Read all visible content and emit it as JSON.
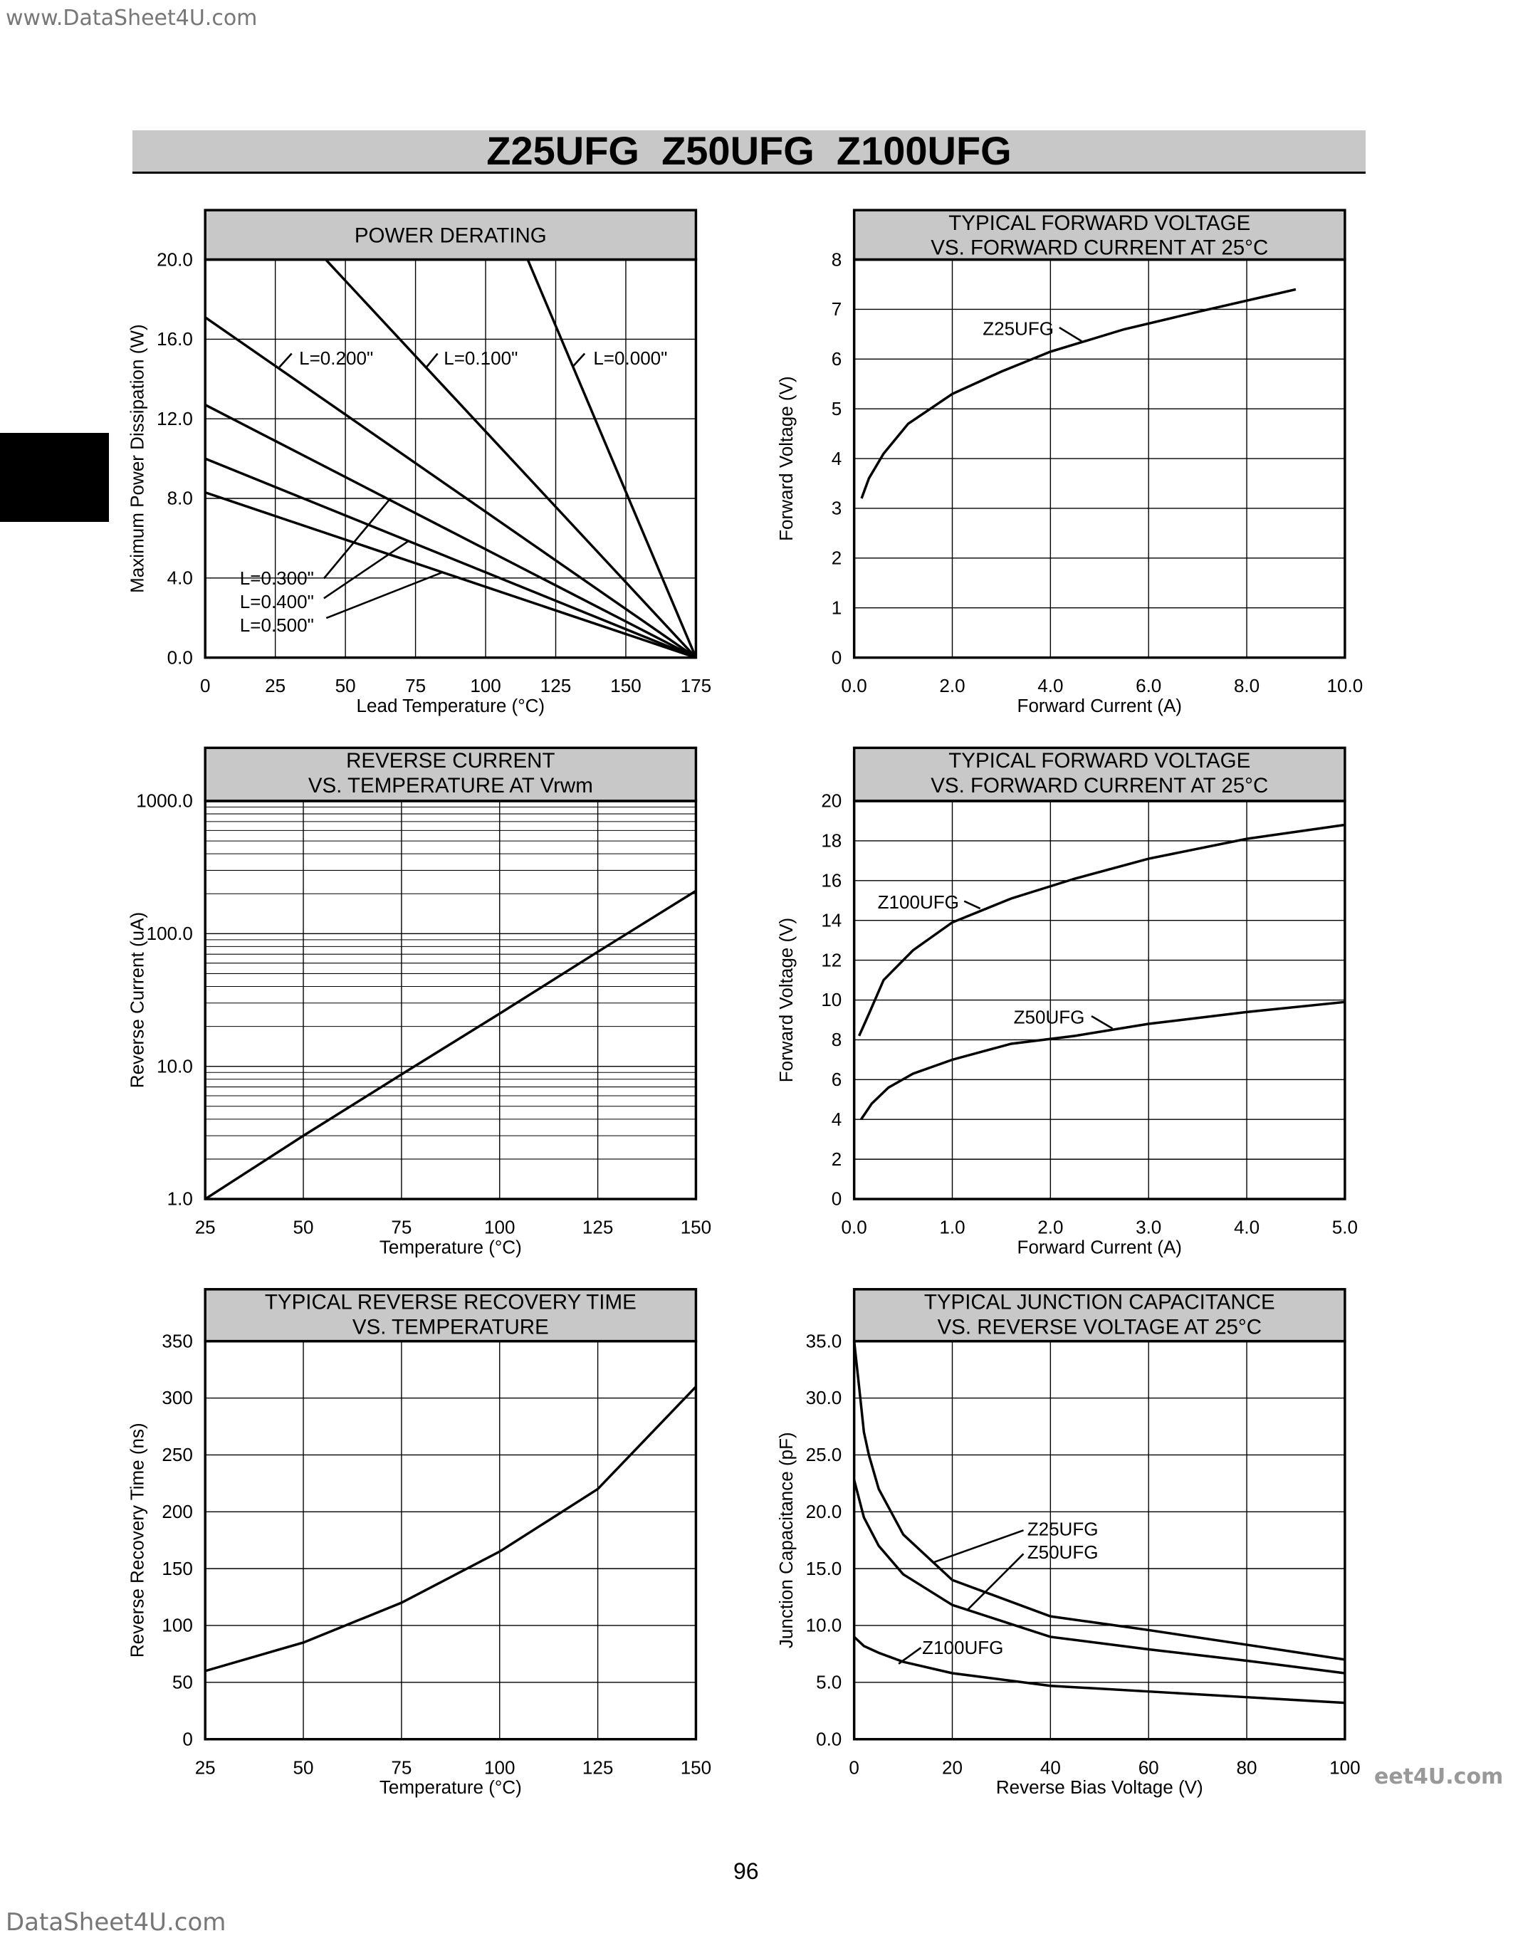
{
  "watermarks": {
    "top_left": "www.DataSheet4U.com",
    "bottom_left": "DataSheet4U.com",
    "right": "eet4U.com"
  },
  "page_title": "Z25UFG  Z50UFG  Z100UFG",
  "page_number": "96",
  "colors": {
    "header_fill": "#c8c8c8",
    "line": "#000000",
    "side_tab": "#000000"
  },
  "chart_data": [
    {
      "type": "line",
      "title": [
        "POWER DERATING"
      ],
      "xlabel": "Lead Temperature (°C)",
      "ylabel": "Maximum  Power Dissipation (W)",
      "xlim": [
        0,
        175
      ],
      "ylim": [
        0,
        20
      ],
      "xticks": [
        0,
        25,
        50,
        75,
        100,
        125,
        150,
        175
      ],
      "xtick_labels": [
        "0",
        "25",
        "50",
        "75",
        "100",
        "125",
        "150",
        "175"
      ],
      "yticks": [
        0,
        4,
        8,
        12,
        16,
        20
      ],
      "ytick_labels": [
        "0.0",
        "4.0",
        "8.0",
        "12.0",
        "16.0",
        "20.0"
      ],
      "grid": true,
      "series": [
        {
          "name": "L=0.000\"",
          "points": [
            [
              115,
              20
            ],
            [
              175,
              0
            ]
          ]
        },
        {
          "name": "L=0.100\"",
          "points": [
            [
              43,
              20
            ],
            [
              175,
              0
            ]
          ]
        },
        {
          "name": "L=0.200\"",
          "points": [
            [
              0,
              17.1
            ],
            [
              175,
              0
            ]
          ]
        },
        {
          "name": "L=0.300\"",
          "points": [
            [
              0,
              12.7
            ],
            [
              175,
              0
            ]
          ]
        },
        {
          "name": "L=0.400\"",
          "points": [
            [
              0,
              10.0
            ],
            [
              175,
              0
            ]
          ]
        },
        {
          "name": "L=0.500\"",
          "points": [
            [
              0,
              8.3
            ],
            [
              175,
              0
            ]
          ]
        }
      ]
    },
    {
      "type": "line",
      "title": [
        "TYPICAL FORWARD VOLTAGE",
        "VS. FORWARD CURRENT AT 25°C"
      ],
      "xlabel": "Forward Current (A)",
      "ylabel": "Forward Voltage (V)",
      "xlim": [
        0,
        10
      ],
      "ylim": [
        0,
        8
      ],
      "xticks": [
        0,
        2,
        4,
        6,
        8,
        10
      ],
      "xtick_labels": [
        "0.0",
        "2.0",
        "4.0",
        "6.0",
        "8.0",
        "10.0"
      ],
      "yticks": [
        0,
        1,
        2,
        3,
        4,
        5,
        6,
        7,
        8
      ],
      "ytick_labels": [
        "0",
        "1",
        "2",
        "3",
        "4",
        "5",
        "6",
        "7",
        "8"
      ],
      "grid": true,
      "series": [
        {
          "name": "Z25UFG",
          "points": [
            [
              0.15,
              3.2
            ],
            [
              0.3,
              3.6
            ],
            [
              0.6,
              4.1
            ],
            [
              1.1,
              4.7
            ],
            [
              2,
              5.3
            ],
            [
              3,
              5.75
            ],
            [
              4,
              6.15
            ],
            [
              5.5,
              6.6
            ],
            [
              7,
              6.95
            ],
            [
              9,
              7.4
            ]
          ]
        }
      ]
    },
    {
      "type": "line",
      "title": [
        "REVERSE CURRENT",
        "VS. TEMPERATURE AT Vrwm"
      ],
      "xlabel": "Temperature (°C)",
      "ylabel": "Reverse Current (uA)",
      "xlim": [
        25,
        150
      ],
      "ylim": [
        1,
        1000
      ],
      "yscale": "log",
      "xticks": [
        25,
        50,
        75,
        100,
        125,
        150
      ],
      "xtick_labels": [
        "25",
        "50",
        "75",
        "100",
        "125",
        "150"
      ],
      "yticks": [
        1,
        10,
        100,
        1000
      ],
      "ytick_labels": [
        "1.0",
        "10.0",
        "100.0",
        "1000.0"
      ],
      "grid": true,
      "series": [
        {
          "points": [
            [
              25,
              1
            ],
            [
              50,
              3
            ],
            [
              75,
              8.7
            ],
            [
              100,
              25
            ],
            [
              125,
              73
            ],
            [
              150,
              210
            ]
          ]
        }
      ]
    },
    {
      "type": "line",
      "title": [
        "TYPICAL FORWARD VOLTAGE",
        "VS. FORWARD CURRENT AT 25°C"
      ],
      "xlabel": "Forward Current (A)",
      "ylabel": "Forward Voltage (V)",
      "xlim": [
        0,
        5
      ],
      "ylim": [
        0,
        20
      ],
      "xticks": [
        0,
        1,
        2,
        3,
        4,
        5
      ],
      "xtick_labels": [
        "0.0",
        "1.0",
        "2.0",
        "3.0",
        "4.0",
        "5.0"
      ],
      "yticks": [
        0,
        2,
        4,
        6,
        8,
        10,
        12,
        14,
        16,
        18,
        20
      ],
      "ytick_labels": [
        "0",
        "2",
        "4",
        "6",
        "8",
        "10",
        "12",
        "14",
        "16",
        "18",
        "20"
      ],
      "grid": true,
      "series": [
        {
          "name": "Z100UFG",
          "points": [
            [
              0.05,
              8.2
            ],
            [
              0.15,
              9.3
            ],
            [
              0.3,
              11
            ],
            [
              0.6,
              12.5
            ],
            [
              1.0,
              13.9
            ],
            [
              1.6,
              15.1
            ],
            [
              2.25,
              16.1
            ],
            [
              3.0,
              17.1
            ],
            [
              4.0,
              18.1
            ],
            [
              5.0,
              18.8
            ]
          ]
        },
        {
          "name": "Z50UFG",
          "points": [
            [
              0.07,
              4.0
            ],
            [
              0.18,
              4.8
            ],
            [
              0.35,
              5.6
            ],
            [
              0.6,
              6.3
            ],
            [
              1.0,
              7.0
            ],
            [
              1.6,
              7.8
            ],
            [
              2.25,
              8.2
            ],
            [
              3.0,
              8.8
            ],
            [
              4.0,
              9.4
            ],
            [
              5.0,
              9.9
            ]
          ]
        }
      ]
    },
    {
      "type": "line",
      "title": [
        "TYPICAL REVERSE RECOVERY TIME",
        "VS. TEMPERATURE"
      ],
      "xlabel": "Temperature (°C)",
      "ylabel": "Reverse Recovery Time (ns)",
      "xlim": [
        25,
        150
      ],
      "ylim": [
        0,
        350
      ],
      "xticks": [
        25,
        50,
        75,
        100,
        125,
        150
      ],
      "xtick_labels": [
        "25",
        "50",
        "75",
        "100",
        "125",
        "150"
      ],
      "yticks": [
        0,
        50,
        100,
        150,
        200,
        250,
        300,
        350
      ],
      "ytick_labels": [
        "0",
        "50",
        "100",
        "150",
        "200",
        "250",
        "300",
        "350"
      ],
      "grid": true,
      "series": [
        {
          "points": [
            [
              25,
              60
            ],
            [
              50,
              85
            ],
            [
              75,
              120
            ],
            [
              100,
              165
            ],
            [
              125,
              220
            ],
            [
              150,
              310
            ]
          ]
        }
      ]
    },
    {
      "type": "line",
      "title": [
        "TYPICAL JUNCTION CAPACITANCE",
        "VS. REVERSE VOLTAGE AT 25°C"
      ],
      "xlabel": "Reverse Bias Voltage (V)",
      "ylabel": "Junction Capacitance (pF)",
      "xlim": [
        0,
        100
      ],
      "ylim": [
        0,
        35
      ],
      "xticks": [
        0,
        20,
        40,
        60,
        80,
        100
      ],
      "xtick_labels": [
        "0",
        "20",
        "40",
        "60",
        "80",
        "100"
      ],
      "yticks": [
        0,
        5,
        10,
        15,
        20,
        25,
        30,
        35
      ],
      "ytick_labels": [
        "0.0",
        "5.0",
        "10.0",
        "15.0",
        "20.0",
        "25.0",
        "30.0",
        "35.0"
      ],
      "grid": true,
      "series": [
        {
          "name": "Z25UFG",
          "points": [
            [
              0,
              35
            ],
            [
              1,
              31
            ],
            [
              2,
              27
            ],
            [
              3,
              25
            ],
            [
              5,
              22
            ],
            [
              10,
              18
            ],
            [
              20,
              14
            ],
            [
              40,
              10.8
            ],
            [
              60,
              9.6
            ],
            [
              80,
              8.3
            ],
            [
              100,
              7
            ]
          ]
        },
        {
          "name": "Z50UFG",
          "points": [
            [
              0,
              22.8
            ],
            [
              2,
              19.5
            ],
            [
              5,
              17
            ],
            [
              10,
              14.5
            ],
            [
              20,
              11.8
            ],
            [
              40,
              9
            ],
            [
              60,
              7.9
            ],
            [
              80,
              6.9
            ],
            [
              100,
              5.8
            ]
          ]
        },
        {
          "name": "Z100UFG",
          "points": [
            [
              0,
              9
            ],
            [
              2,
              8.2
            ],
            [
              5,
              7.6
            ],
            [
              10,
              6.8
            ],
            [
              20,
              5.8
            ],
            [
              40,
              4.7
            ],
            [
              60,
              4.2
            ],
            [
              80,
              3.7
            ],
            [
              100,
              3.2
            ]
          ]
        }
      ]
    }
  ]
}
